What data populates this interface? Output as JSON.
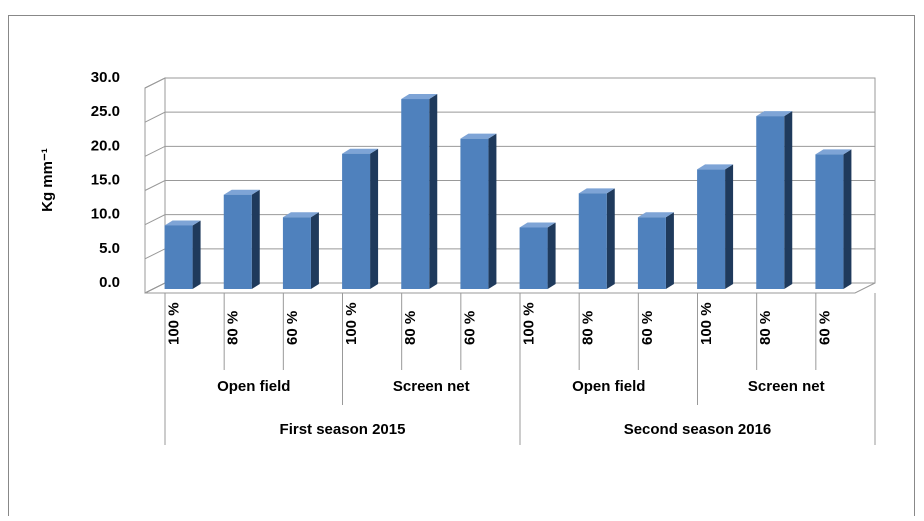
{
  "chart_data": {
    "type": "bar3d",
    "y_label": "Kg mm⁻¹",
    "categories": [
      "100 %",
      "80 %",
      "60 %",
      "100 %",
      "80 %",
      "60 %",
      "100 %",
      "80 %",
      "60 %",
      "100 %",
      "80 %",
      "60 %"
    ],
    "subgroups": [
      "Open field",
      "Screen net",
      "Open field",
      "Screen net"
    ],
    "groups": [
      "First season 2015",
      "Second season 2016"
    ],
    "values": [
      9.3,
      13.8,
      10.5,
      19.8,
      27.8,
      22.0,
      9.0,
      14.0,
      10.5,
      17.5,
      25.3,
      19.7
    ],
    "color": "#4f81bd",
    "ylim": [
      0,
      30
    ],
    "yticks": [
      {
        "value": 0,
        "label": "0.0"
      },
      {
        "value": 5,
        "label": "5.0"
      },
      {
        "value": 10,
        "label": "10.0"
      },
      {
        "value": 15,
        "label": "15.0"
      },
      {
        "value": 20,
        "label": "20.0"
      },
      {
        "value": 25,
        "label": "25.0"
      },
      {
        "value": 30,
        "label": "30.0"
      }
    ],
    "grid": true
  }
}
